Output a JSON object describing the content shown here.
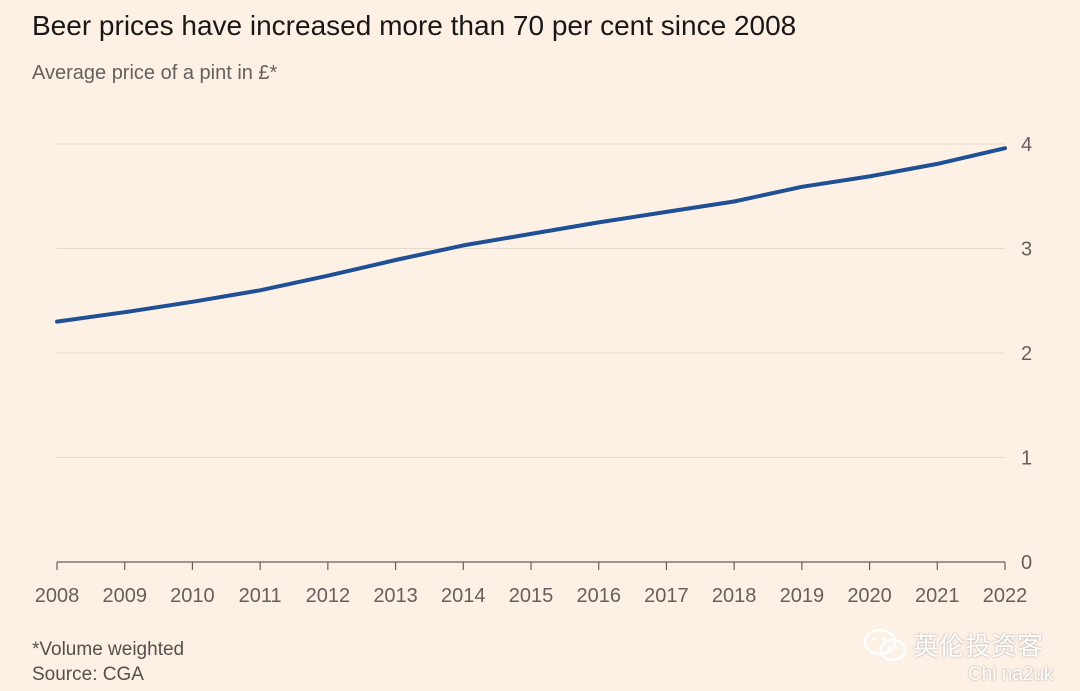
{
  "title": "Beer prices have increased more than 70 per cent since 2008",
  "subtitle": "Average price of a pint in £*",
  "footnote": "*Volume weighted",
  "source": "Source: CGA",
  "watermark": {
    "icon": "wechat-icon",
    "text": "英伦投资客",
    "url": "Chi na2uk"
  },
  "colors": {
    "background": "#fdf1e6",
    "line": "#1f5096",
    "grid": "#e6d9ce",
    "axis": "#66605c"
  },
  "chart_data": {
    "type": "line",
    "title": "Beer prices have increased more than 70 per cent since 2008",
    "subtitle": "Average price of a pint in £*",
    "xlabel": "",
    "ylabel": "",
    "x": [
      2008,
      2009,
      2010,
      2011,
      2012,
      2013,
      2014,
      2015,
      2016,
      2017,
      2018,
      2019,
      2020,
      2021,
      2022
    ],
    "series": [
      {
        "values": [
          2.3,
          2.39,
          2.49,
          2.6,
          2.74,
          2.89,
          3.03,
          3.14,
          3.25,
          3.35,
          3.45,
          3.59,
          3.69,
          3.81,
          3.96
        ]
      }
    ],
    "ylim": [
      0,
      4
    ],
    "yticks": [
      0,
      1,
      2,
      3,
      4
    ],
    "xticks": [
      "2008",
      "2009",
      "2010",
      "2011",
      "2012",
      "2013",
      "2014",
      "2015",
      "2016",
      "2017",
      "2018",
      "2019",
      "2020",
      "2021",
      "2022"
    ],
    "y_axis_side": "right",
    "grid": true
  }
}
